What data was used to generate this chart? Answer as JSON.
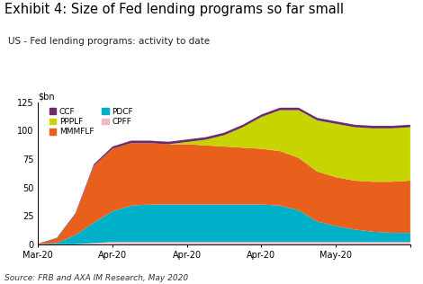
{
  "title": "Exhibit 4: Size of Fed lending programs so far small",
  "subtitle": "US - Fed lending programs: activity to date",
  "ylabel": "$bn",
  "source": "Source: FRB and AXA IM Research, May 2020",
  "ylim": [
    0,
    125
  ],
  "yticks": [
    0,
    25,
    50,
    75,
    100,
    125
  ],
  "colors": {
    "CCF": "#6b2d6b",
    "MMMFLF": "#e8601c",
    "CPFF": "#f0b8c0",
    "PPPLF": "#c8d400",
    "PDCF": "#00afc8"
  },
  "x": [
    0,
    1,
    2,
    3,
    4,
    5,
    6,
    7,
    8,
    9,
    10,
    11,
    12,
    13,
    14,
    15,
    16,
    17,
    18,
    19,
    20
  ],
  "CCF": [
    0.3,
    0.5,
    1.0,
    1.5,
    2.0,
    2.2,
    2.2,
    2.2,
    2.2,
    2.2,
    2.2,
    2.2,
    2.2,
    2.2,
    2.2,
    2.2,
    2.2,
    2.2,
    2.2,
    2.2,
    2.2
  ],
  "MMMFLF": [
    0.3,
    4,
    18,
    50,
    55,
    55,
    54,
    53,
    53,
    52,
    51,
    50,
    49,
    48,
    46,
    44,
    43,
    43,
    44,
    45,
    46
  ],
  "CPFF": [
    0,
    0,
    0,
    1,
    2,
    2,
    2,
    2,
    2,
    2,
    2,
    2,
    2,
    2,
    2,
    2,
    2,
    2,
    2,
    2,
    2
  ],
  "PDCF": [
    0,
    1,
    8,
    18,
    27,
    32,
    33,
    33,
    33,
    33,
    33,
    33,
    33,
    32,
    28,
    18,
    14,
    11,
    9,
    8,
    8
  ],
  "PPPLF": [
    0,
    0,
    0,
    0,
    0,
    0,
    0,
    0,
    2,
    5,
    10,
    18,
    28,
    36,
    42,
    45,
    47,
    47,
    47,
    47,
    47
  ],
  "x_tick_pos": [
    0,
    4,
    8,
    12,
    16,
    20
  ],
  "x_tick_labels": [
    "Mar-20",
    "Apr-20",
    "Apr-20",
    "Apr-20",
    "May-20",
    ""
  ]
}
